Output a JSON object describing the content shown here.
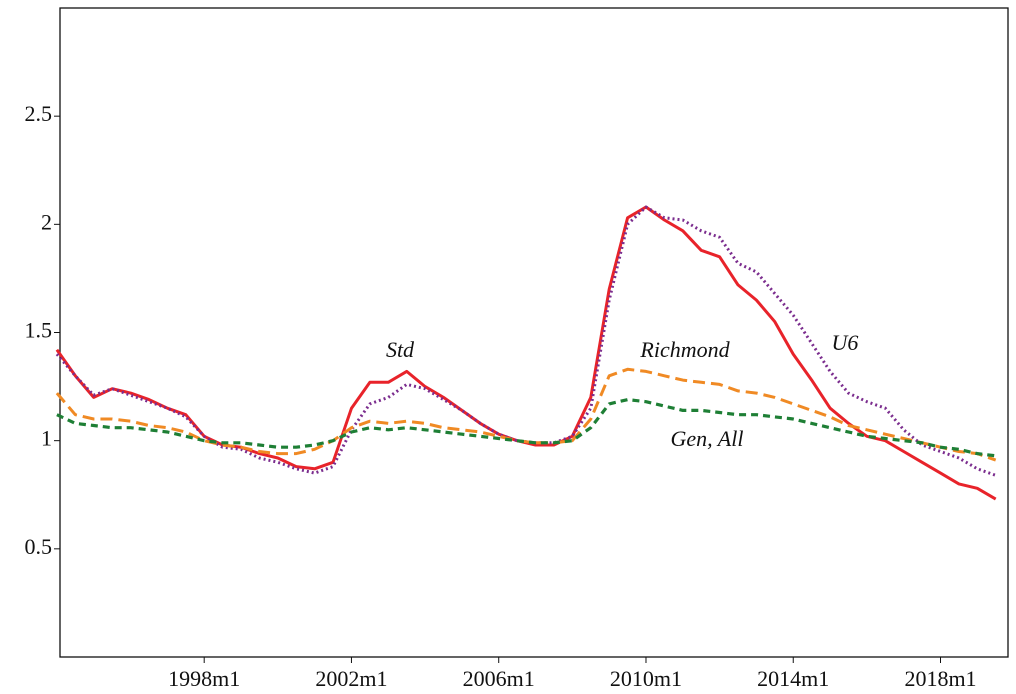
{
  "chart_data": {
    "type": "line",
    "x": [
      "1994m1",
      "1994m7",
      "1995m1",
      "1995m7",
      "1996m1",
      "1996m7",
      "1997m1",
      "1997m7",
      "1998m1",
      "1998m7",
      "1999m1",
      "1999m7",
      "2000m1",
      "2000m7",
      "2001m1",
      "2001m7",
      "2002m1",
      "2002m7",
      "2003m1",
      "2003m7",
      "2004m1",
      "2004m7",
      "2005m1",
      "2005m7",
      "2006m1",
      "2006m7",
      "2007m1",
      "2007m7",
      "2008m1",
      "2008m7",
      "2009m1",
      "2009m7",
      "2010m1",
      "2010m7",
      "2011m1",
      "2011m7",
      "2012m1",
      "2012m7",
      "2013m1",
      "2013m7",
      "2014m1",
      "2014m7",
      "2015m1",
      "2015m7",
      "2016m1",
      "2016m7",
      "2017m1",
      "2017m7",
      "2018m1",
      "2018m7",
      "2019m1",
      "2019m7"
    ],
    "series": [
      {
        "name": "Std",
        "color": "#e8232a",
        "style": "solid",
        "values": [
          1.42,
          1.3,
          1.2,
          1.24,
          1.22,
          1.19,
          1.15,
          1.12,
          1.02,
          0.98,
          0.97,
          0.94,
          0.92,
          0.88,
          0.87,
          0.9,
          1.15,
          1.27,
          1.27,
          1.32,
          1.25,
          1.2,
          1.14,
          1.08,
          1.03,
          1.0,
          0.98,
          0.98,
          1.02,
          1.2,
          1.7,
          2.03,
          2.08,
          2.02,
          1.97,
          1.88,
          1.85,
          1.72,
          1.65,
          1.55,
          1.4,
          1.28,
          1.15,
          1.08,
          1.02,
          1.0,
          0.95,
          0.9,
          0.85,
          0.8,
          0.78,
          0.73
        ]
      },
      {
        "name": "U6",
        "color": "#7b2d8e",
        "style": "dotted",
        "values": [
          1.4,
          1.3,
          1.21,
          1.24,
          1.21,
          1.18,
          1.15,
          1.11,
          1.02,
          0.97,
          0.96,
          0.92,
          0.9,
          0.87,
          0.85,
          0.88,
          1.05,
          1.17,
          1.2,
          1.26,
          1.24,
          1.19,
          1.14,
          1.08,
          1.03,
          1.0,
          0.99,
          0.99,
          1.02,
          1.15,
          1.65,
          2.0,
          2.08,
          2.03,
          2.02,
          1.97,
          1.94,
          1.82,
          1.78,
          1.68,
          1.58,
          1.45,
          1.32,
          1.22,
          1.18,
          1.15,
          1.05,
          0.98,
          0.95,
          0.92,
          0.87,
          0.84
        ]
      },
      {
        "name": "Richmond",
        "color": "#f08a24",
        "style": "dashed",
        "values": [
          1.22,
          1.12,
          1.1,
          1.1,
          1.09,
          1.07,
          1.06,
          1.04,
          1.0,
          0.98,
          0.97,
          0.95,
          0.94,
          0.94,
          0.96,
          1.0,
          1.06,
          1.09,
          1.08,
          1.09,
          1.08,
          1.06,
          1.05,
          1.04,
          1.02,
          1.0,
          0.99,
          0.99,
          1.0,
          1.1,
          1.3,
          1.33,
          1.32,
          1.3,
          1.28,
          1.27,
          1.26,
          1.23,
          1.22,
          1.2,
          1.17,
          1.14,
          1.11,
          1.07,
          1.05,
          1.03,
          1.01,
          0.99,
          0.97,
          0.95,
          0.94,
          0.91
        ]
      },
      {
        "name": "Gen, All",
        "color": "#1e7f35",
        "style": "short-dashed",
        "values": [
          1.12,
          1.08,
          1.07,
          1.06,
          1.06,
          1.05,
          1.04,
          1.02,
          1.0,
          0.99,
          0.99,
          0.98,
          0.97,
          0.97,
          0.98,
          1.0,
          1.04,
          1.06,
          1.05,
          1.06,
          1.05,
          1.04,
          1.03,
          1.02,
          1.01,
          1.0,
          0.99,
          0.99,
          1.0,
          1.06,
          1.17,
          1.19,
          1.18,
          1.16,
          1.14,
          1.14,
          1.13,
          1.12,
          1.12,
          1.11,
          1.1,
          1.08,
          1.06,
          1.04,
          1.02,
          1.01,
          1.0,
          0.99,
          0.97,
          0.96,
          0.94,
          0.93
        ]
      }
    ],
    "xlim": [
      "1994m2",
      "2019m11"
    ],
    "xticks": [
      "1998m1",
      "2002m1",
      "2006m1",
      "2010m1",
      "2014m1",
      "2018m1"
    ],
    "ylim": [
      0,
      3
    ],
    "yticks": [
      0.5,
      1.0,
      1.5,
      2.0,
      2.5
    ],
    "grid": false
  }
}
